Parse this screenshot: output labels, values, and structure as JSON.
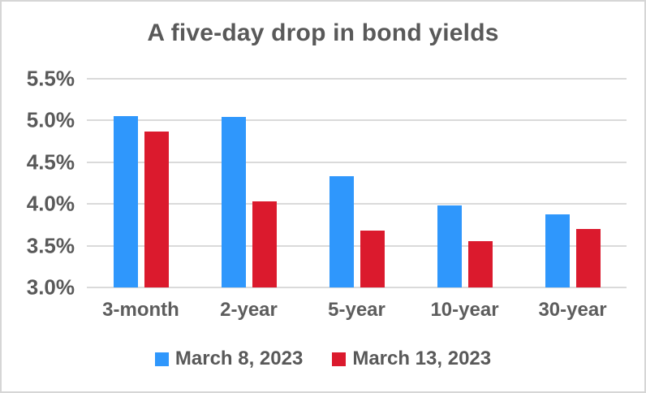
{
  "chart_data": {
    "type": "bar",
    "title": "A five-day drop in bond yields",
    "categories": [
      "3-month",
      "2-year",
      "5-year",
      "10-year",
      "30-year"
    ],
    "series": [
      {
        "name": "March 8, 2023",
        "color": "#2F97FC",
        "values": [
          5.05,
          5.04,
          4.33,
          3.98,
          3.88
        ]
      },
      {
        "name": "March 13, 2023",
        "color": "#DB1A2D",
        "values": [
          4.87,
          4.03,
          3.68,
          3.55,
          3.7
        ]
      }
    ],
    "y_axis": {
      "min": 3.0,
      "max": 5.5,
      "step": 0.5,
      "tick_labels": [
        "5.5%",
        "5.0%",
        "4.5%",
        "4.0%",
        "3.5%",
        "3.0%"
      ],
      "format": "percent"
    },
    "xlabel": "",
    "ylabel": "",
    "grid": true,
    "legend_position": "bottom",
    "colors": {
      "text": "#595959",
      "gridline": "#dadada",
      "background": "#ffffff",
      "frame_border": "#d6d6d6"
    }
  }
}
